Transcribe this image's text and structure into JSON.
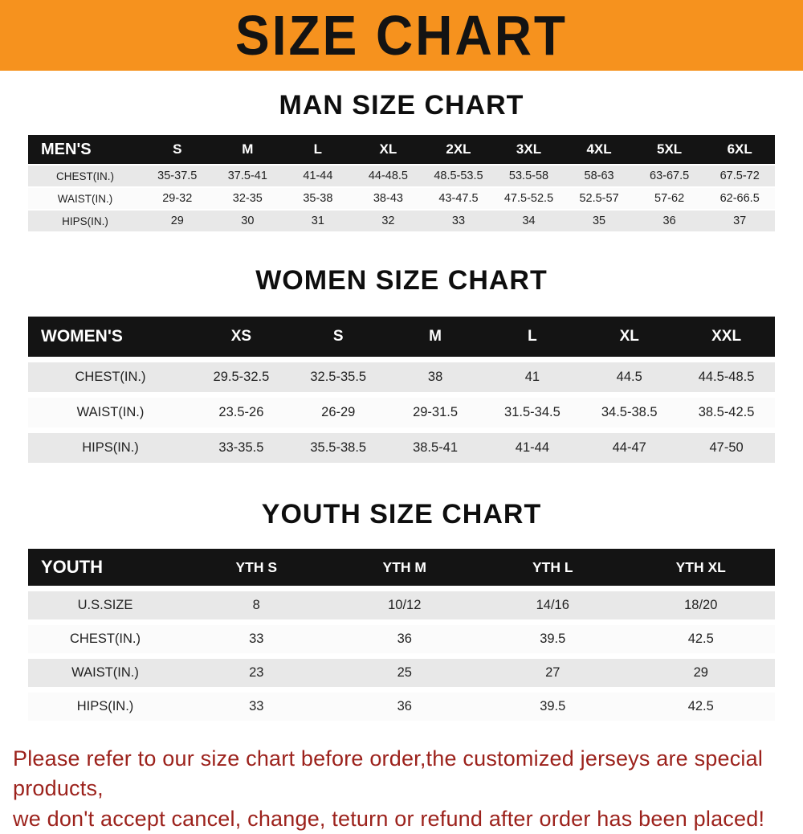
{
  "banner": {
    "title": "SIZE CHART",
    "bg_color": "#F6921E"
  },
  "sections": {
    "men": {
      "heading": "MAN SIZE CHART",
      "table": {
        "header": [
          "MEN'S",
          "S",
          "M",
          "L",
          "XL",
          "2XL",
          "3XL",
          "4XL",
          "5XL",
          "6XL"
        ],
        "rows": [
          [
            "CHEST(IN.)",
            "35-37.5",
            "37.5-41",
            "41-44",
            "44-48.5",
            "48.5-53.5",
            "53.5-58",
            "58-63",
            "63-67.5",
            "67.5-72"
          ],
          [
            "WAIST(IN.)",
            "29-32",
            "32-35",
            "35-38",
            "38-43",
            "43-47.5",
            "47.5-52.5",
            "52.5-57",
            "57-62",
            "62-66.5"
          ],
          [
            "HIPS(IN.)",
            "29",
            "30",
            "31",
            "32",
            "33",
            "34",
            "35",
            "36",
            "37"
          ]
        ]
      }
    },
    "women": {
      "heading": "WOMEN SIZE CHART",
      "table": {
        "header": [
          "WOMEN'S",
          "XS",
          "S",
          "M",
          "L",
          "XL",
          "XXL"
        ],
        "rows": [
          [
            "CHEST(IN.)",
            "29.5-32.5",
            "32.5-35.5",
            "38",
            "41",
            "44.5",
            "44.5-48.5"
          ],
          [
            "WAIST(IN.)",
            "23.5-26",
            "26-29",
            "29-31.5",
            "31.5-34.5",
            "34.5-38.5",
            "38.5-42.5"
          ],
          [
            "HIPS(IN.)",
            "33-35.5",
            "35.5-38.5",
            "38.5-41",
            "41-44",
            "44-47",
            "47-50"
          ]
        ]
      }
    },
    "youth": {
      "heading": "YOUTH SIZE CHART",
      "table": {
        "header": [
          "YOUTH",
          "YTH S",
          "YTH M",
          "YTH L",
          "YTH XL"
        ],
        "rows": [
          [
            "U.S.SIZE",
            "8",
            "10/12",
            "14/16",
            "18/20"
          ],
          [
            "CHEST(IN.)",
            "33",
            "36",
            "39.5",
            "42.5"
          ],
          [
            "WAIST(IN.)",
            "23",
            "25",
            "27",
            "29"
          ],
          [
            "HIPS(IN.)",
            "33",
            "36",
            "39.5",
            "42.5"
          ]
        ]
      }
    }
  },
  "disclaimer": {
    "text_color": "#9C221C",
    "line1": "Please refer to our size chart before order,the customized jerseys are special products,",
    "line2": "we don't accept cancel, change, teturn or refund after order has been placed!"
  }
}
